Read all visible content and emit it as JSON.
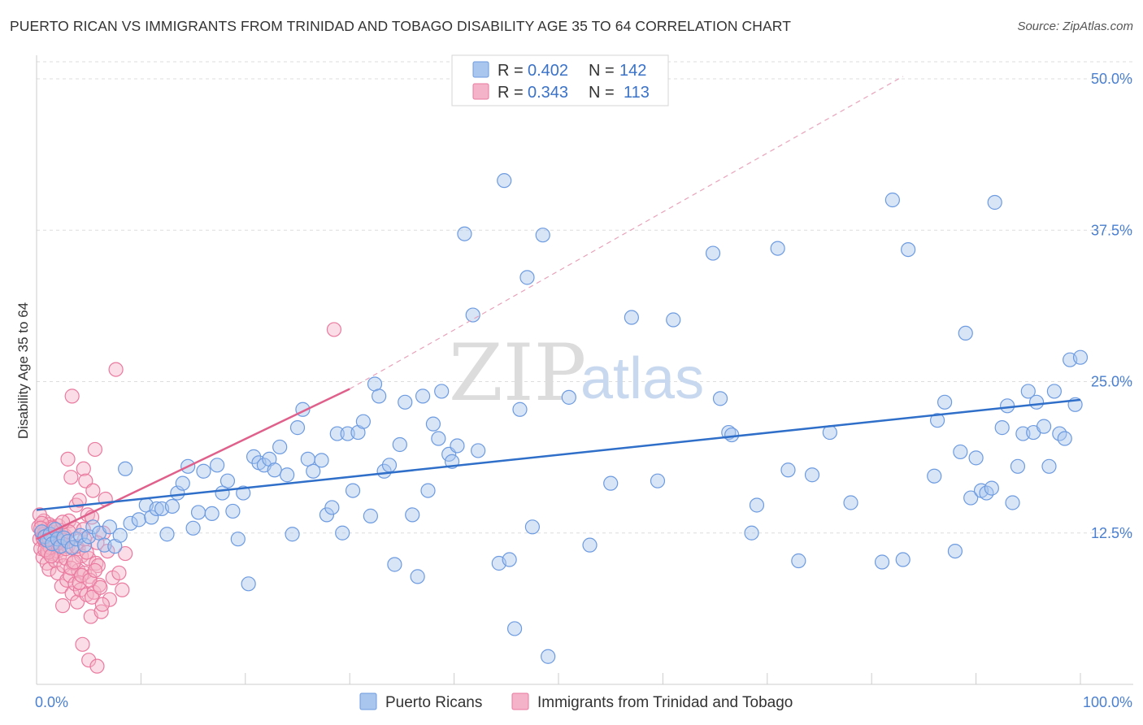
{
  "title": "PUERTO RICAN VS IMMIGRANTS FROM TRINIDAD AND TOBAGO DISABILITY AGE 35 TO 64 CORRELATION CHART",
  "source": "Source: ZipAtlas.com",
  "watermark": {
    "zip": "ZIP",
    "atlas": "atlas"
  },
  "colors": {
    "blue_fill": "#a9c6ee",
    "blue_stroke": "#6d9be0",
    "blue_line": "#2f6ec9",
    "pink_fill": "#f4b3c8",
    "pink_stroke": "#ea7a9f",
    "pink_line": "#e0608c",
    "grid": "#dddddd",
    "tick_text": "#4a7fd0"
  },
  "legend": {
    "rows": [
      {
        "r_label": "R =",
        "r_value": "0.402",
        "n_label": "N =",
        "n_value": "142"
      },
      {
        "r_label": "R =",
        "r_value": "0.343",
        "n_label": "N =",
        "n_value": "113"
      }
    ]
  },
  "bottom_legend": [
    "Puerto Ricans",
    "Immigrants from Trinidad and Tobago"
  ],
  "chart_data": {
    "type": "scatter",
    "xlabel": "",
    "ylabel": "Disability Age 35 to 64",
    "xlim": [
      0,
      100
    ],
    "ylim": [
      0,
      50
    ],
    "x_tick_labels": [
      "0.0%",
      "100.0%"
    ],
    "y_ticks": [
      12.5,
      25.0,
      37.5,
      50.0
    ],
    "y_tick_labels": [
      "12.5%",
      "25.0%",
      "37.5%",
      "50.0%"
    ],
    "grid": true,
    "legend_position": "top-center",
    "series": [
      {
        "name": "Puerto Ricans",
        "trend": {
          "x": [
            0,
            100
          ],
          "y": [
            14.4,
            23.5
          ]
        },
        "points": [
          [
            0.5,
            12.6
          ],
          [
            0.8,
            12.2
          ],
          [
            1.0,
            11.9
          ],
          [
            1.3,
            12.4
          ],
          [
            1.5,
            11.6
          ],
          [
            1.8,
            12.8
          ],
          [
            2.0,
            12.0
          ],
          [
            2.3,
            11.4
          ],
          [
            2.6,
            12.1
          ],
          [
            3.0,
            11.8
          ],
          [
            3.4,
            11.3
          ],
          [
            3.8,
            12.0
          ],
          [
            4.2,
            12.3
          ],
          [
            4.6,
            11.5
          ],
          [
            5.0,
            12.2
          ],
          [
            5.4,
            13.0
          ],
          [
            6.0,
            12.5
          ],
          [
            6.5,
            11.5
          ],
          [
            7.0,
            13.0
          ],
          [
            7.5,
            11.4
          ],
          [
            8.0,
            12.3
          ],
          [
            8.5,
            17.8
          ],
          [
            9.0,
            13.3
          ],
          [
            9.8,
            13.6
          ],
          [
            10.5,
            14.8
          ],
          [
            11.0,
            13.8
          ],
          [
            11.5,
            14.5
          ],
          [
            12.0,
            14.5
          ],
          [
            12.5,
            12.4
          ],
          [
            13.0,
            14.7
          ],
          [
            13.5,
            15.8
          ],
          [
            14.0,
            16.6
          ],
          [
            14.5,
            18.0
          ],
          [
            15.0,
            12.9
          ],
          [
            15.5,
            14.2
          ],
          [
            16.0,
            17.6
          ],
          [
            16.8,
            14.1
          ],
          [
            17.3,
            18.1
          ],
          [
            17.8,
            15.8
          ],
          [
            18.3,
            16.8
          ],
          [
            18.8,
            14.3
          ],
          [
            19.3,
            12.0
          ],
          [
            19.8,
            15.8
          ],
          [
            20.3,
            8.3
          ],
          [
            20.8,
            18.8
          ],
          [
            21.3,
            18.3
          ],
          [
            21.8,
            18.1
          ],
          [
            22.3,
            18.6
          ],
          [
            22.8,
            17.7
          ],
          [
            23.3,
            19.6
          ],
          [
            24.0,
            17.3
          ],
          [
            24.5,
            12.4
          ],
          [
            25.0,
            21.2
          ],
          [
            25.5,
            22.7
          ],
          [
            26.0,
            18.6
          ],
          [
            26.5,
            17.6
          ],
          [
            27.3,
            18.5
          ],
          [
            27.8,
            14.0
          ],
          [
            28.3,
            14.6
          ],
          [
            28.8,
            20.7
          ],
          [
            29.3,
            12.5
          ],
          [
            29.8,
            20.7
          ],
          [
            30.3,
            16.0
          ],
          [
            30.8,
            20.8
          ],
          [
            31.3,
            21.7
          ],
          [
            32.0,
            13.9
          ],
          [
            32.4,
            24.8
          ],
          [
            32.8,
            23.8
          ],
          [
            33.3,
            17.6
          ],
          [
            33.8,
            18.1
          ],
          [
            34.3,
            9.9
          ],
          [
            34.8,
            19.8
          ],
          [
            35.3,
            23.3
          ],
          [
            36.0,
            14.0
          ],
          [
            36.5,
            8.9
          ],
          [
            37.0,
            23.8
          ],
          [
            37.5,
            16.0
          ],
          [
            38.0,
            21.5
          ],
          [
            38.5,
            20.3
          ],
          [
            38.8,
            24.2
          ],
          [
            39.5,
            19.0
          ],
          [
            39.8,
            18.4
          ],
          [
            40.3,
            19.7
          ],
          [
            41.0,
            37.2
          ],
          [
            41.8,
            30.5
          ],
          [
            42.3,
            19.3
          ],
          [
            44.3,
            10.0
          ],
          [
            44.8,
            41.6
          ],
          [
            45.3,
            10.3
          ],
          [
            45.8,
            4.6
          ],
          [
            46.3,
            22.7
          ],
          [
            47.0,
            33.6
          ],
          [
            47.5,
            13.0
          ],
          [
            48.5,
            37.1
          ],
          [
            49.0,
            2.3
          ],
          [
            51.0,
            23.7
          ],
          [
            53.0,
            11.5
          ],
          [
            55.0,
            16.6
          ],
          [
            57.0,
            30.3
          ],
          [
            59.5,
            16.8
          ],
          [
            61.0,
            30.1
          ],
          [
            64.8,
            35.6
          ],
          [
            65.5,
            23.6
          ],
          [
            66.3,
            20.8
          ],
          [
            66.6,
            20.6
          ],
          [
            68.5,
            12.5
          ],
          [
            69.0,
            14.8
          ],
          [
            71.0,
            36.0
          ],
          [
            72.0,
            17.7
          ],
          [
            73.0,
            10.2
          ],
          [
            74.3,
            17.3
          ],
          [
            76.0,
            20.8
          ],
          [
            78.0,
            15.0
          ],
          [
            81.0,
            10.1
          ],
          [
            82.0,
            40.0
          ],
          [
            83.0,
            10.3
          ],
          [
            83.5,
            35.9
          ],
          [
            86.0,
            17.2
          ],
          [
            86.3,
            21.8
          ],
          [
            87.0,
            23.3
          ],
          [
            88.0,
            11.0
          ],
          [
            88.5,
            19.2
          ],
          [
            89.0,
            29.0
          ],
          [
            89.5,
            15.4
          ],
          [
            90.0,
            18.7
          ],
          [
            90.5,
            16.0
          ],
          [
            91.0,
            15.8
          ],
          [
            91.5,
            16.2
          ],
          [
            91.8,
            39.8
          ],
          [
            92.5,
            21.2
          ],
          [
            93.0,
            23.0
          ],
          [
            93.5,
            15.0
          ],
          [
            94.0,
            18.0
          ],
          [
            94.5,
            20.7
          ],
          [
            95.0,
            24.2
          ],
          [
            95.5,
            20.8
          ],
          [
            95.8,
            23.3
          ],
          [
            96.5,
            21.3
          ],
          [
            97.0,
            18.0
          ],
          [
            97.5,
            24.2
          ],
          [
            98.0,
            20.7
          ],
          [
            98.5,
            20.3
          ],
          [
            99.0,
            26.8
          ],
          [
            99.5,
            23.1
          ],
          [
            100.0,
            27.0
          ]
        ]
      },
      {
        "name": "Immigrants from Trinidad and Tobago",
        "trend": {
          "x": [
            0,
            30
          ],
          "y": [
            12.0,
            24.4
          ]
        },
        "trend_extended": {
          "x": [
            30,
            83
          ],
          "y": [
            24.4,
            50.2
          ]
        },
        "points": [
          [
            0.2,
            13.0
          ],
          [
            0.3,
            12.0
          ],
          [
            0.4,
            11.2
          ],
          [
            0.5,
            12.5
          ],
          [
            0.6,
            10.5
          ],
          [
            0.7,
            13.5
          ],
          [
            0.8,
            11.8
          ],
          [
            0.9,
            12.8
          ],
          [
            1.0,
            11.0
          ],
          [
            1.0,
            10.0
          ],
          [
            1.1,
            12.2
          ],
          [
            1.2,
            13.2
          ],
          [
            1.2,
            9.5
          ],
          [
            1.3,
            11.6
          ],
          [
            1.4,
            12.6
          ],
          [
            1.5,
            10.8
          ],
          [
            1.5,
            13.0
          ],
          [
            1.6,
            11.4
          ],
          [
            1.7,
            12.0
          ],
          [
            1.8,
            10.2
          ],
          [
            1.9,
            12.4
          ],
          [
            2.0,
            11.0
          ],
          [
            2.0,
            9.2
          ],
          [
            2.1,
            13.1
          ],
          [
            2.2,
            10.6
          ],
          [
            2.3,
            12.7
          ],
          [
            2.4,
            8.1
          ],
          [
            2.5,
            11.8
          ],
          [
            2.5,
            6.5
          ],
          [
            2.6,
            9.8
          ],
          [
            2.7,
            12.3
          ],
          [
            2.8,
            10.4
          ],
          [
            2.9,
            8.6
          ],
          [
            3.0,
            18.6
          ],
          [
            3.0,
            11.4
          ],
          [
            3.1,
            13.5
          ],
          [
            3.2,
            9.0
          ],
          [
            3.3,
            17.1
          ],
          [
            3.4,
            7.5
          ],
          [
            3.4,
            23.8
          ],
          [
            3.5,
            10.0
          ],
          [
            3.6,
            12.9
          ],
          [
            3.7,
            8.3
          ],
          [
            3.8,
            14.8
          ],
          [
            3.9,
            6.8
          ],
          [
            4.0,
            11.2
          ],
          [
            4.0,
            9.4
          ],
          [
            4.1,
            15.2
          ],
          [
            4.2,
            7.8
          ],
          [
            4.3,
            10.6
          ],
          [
            4.4,
            3.3
          ],
          [
            4.5,
            12.8
          ],
          [
            4.5,
            17.8
          ],
          [
            4.6,
            9.2
          ],
          [
            4.7,
            16.8
          ],
          [
            4.8,
            7.4
          ],
          [
            4.9,
            14.0
          ],
          [
            5.0,
            10.4
          ],
          [
            5.0,
            2.0
          ],
          [
            5.1,
            8.9
          ],
          [
            5.2,
            5.6
          ],
          [
            5.3,
            13.8
          ],
          [
            5.4,
            16.0
          ],
          [
            5.5,
            7.6
          ],
          [
            5.6,
            19.4
          ],
          [
            5.7,
            10.0
          ],
          [
            5.8,
            1.5
          ],
          [
            5.9,
            9.8
          ],
          [
            6.0,
            8.2
          ],
          [
            6.2,
            6.0
          ],
          [
            6.4,
            12.5
          ],
          [
            6.6,
            15.3
          ],
          [
            6.8,
            11.0
          ],
          [
            7.0,
            7.0
          ],
          [
            7.3,
            8.8
          ],
          [
            7.6,
            26.0
          ],
          [
            7.9,
            9.2
          ],
          [
            8.2,
            7.8
          ],
          [
            8.5,
            10.8
          ],
          [
            0.3,
            14.0
          ],
          [
            0.5,
            13.3
          ],
          [
            0.7,
            12.4
          ],
          [
            0.9,
            11.9
          ],
          [
            1.1,
            10.9
          ],
          [
            1.3,
            11.3
          ],
          [
            1.6,
            12.9
          ],
          [
            1.8,
            11.5
          ],
          [
            2.1,
            11.7
          ],
          [
            2.3,
            12.1
          ],
          [
            2.6,
            11.9
          ],
          [
            2.8,
            11.2
          ],
          [
            3.1,
            12.6
          ],
          [
            3.3,
            9.6
          ],
          [
            3.6,
            10.1
          ],
          [
            3.8,
            11.4
          ],
          [
            4.1,
            8.4
          ],
          [
            4.3,
            9.0
          ],
          [
            4.6,
            12.0
          ],
          [
            4.8,
            10.9
          ],
          [
            5.1,
            8.6
          ],
          [
            5.3,
            7.2
          ],
          [
            5.6,
            9.4
          ],
          [
            5.8,
            11.7
          ],
          [
            6.1,
            8.0
          ],
          [
            6.3,
            6.6
          ],
          [
            0.4,
            12.9
          ],
          [
            0.6,
            12.1
          ],
          [
            0.8,
            11.1
          ],
          [
            1.0,
            12.3
          ],
          [
            1.2,
            12.0
          ],
          [
            1.4,
            10.6
          ],
          [
            28.5,
            29.3
          ],
          [
            2.5,
            13.4
          ]
        ]
      }
    ]
  }
}
